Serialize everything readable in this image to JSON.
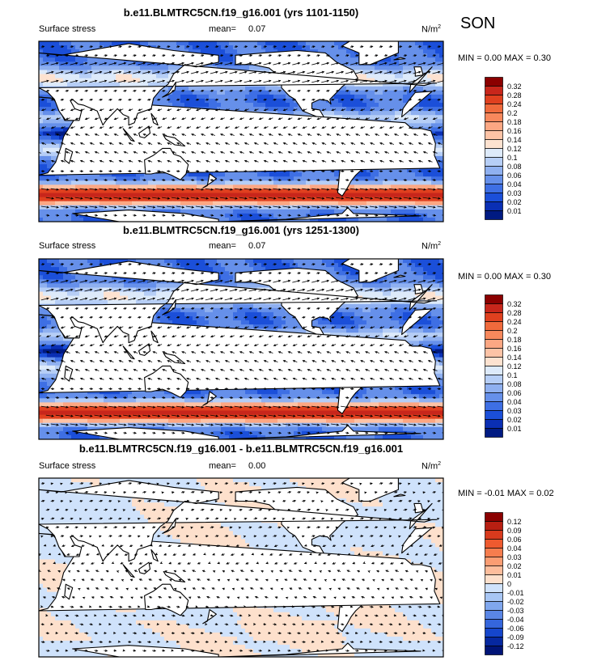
{
  "season": "SON",
  "chart_data": [
    {
      "type": "heatmap",
      "title": "b.e11.BLMTRC5CN.f19_g16.001 (yrs 1101-1150)",
      "left_label": "Surface stress",
      "mean_label": "mean=",
      "mean_value": "0.07",
      "units": "N/m",
      "units_sup": "2",
      "stats": "MIN =  0.00 MAX =  0.30",
      "min": 0.0,
      "max": 0.3,
      "colorbar_levels": [
        "0.32",
        "0.28",
        "0.24",
        "0.2",
        "0.18",
        "0.16",
        "0.14",
        "0.12",
        "0.1",
        "0.08",
        "0.06",
        "0.04",
        "0.03",
        "0.02",
        "0.01"
      ],
      "colorbar_colors": [
        "#8b0000",
        "#c8261b",
        "#e0401f",
        "#f06a3c",
        "#f8885c",
        "#fca783",
        "#fdc3a6",
        "#fde2d0",
        "#ddeafa",
        "#b6cef6",
        "#8fb0f0",
        "#6690ea",
        "#3e6fe4",
        "#1b4fd9",
        "#0a2fb4",
        "#001a82"
      ],
      "field": "mean surface wind stress magnitude with vectors"
    },
    {
      "type": "heatmap",
      "title": "b.e11.BLMTRC5CN.f19_g16.001 (yrs 1251-1300)",
      "left_label": "Surface stress",
      "mean_label": "mean=",
      "mean_value": "0.07",
      "units": "N/m",
      "units_sup": "2",
      "stats": "MIN =  0.00 MAX =  0.30",
      "min": 0.0,
      "max": 0.3,
      "colorbar_levels": [
        "0.32",
        "0.28",
        "0.24",
        "0.2",
        "0.18",
        "0.16",
        "0.14",
        "0.12",
        "0.1",
        "0.08",
        "0.06",
        "0.04",
        "0.03",
        "0.02",
        "0.01"
      ],
      "colorbar_colors": [
        "#8b0000",
        "#c8261b",
        "#e0401f",
        "#f06a3c",
        "#f8885c",
        "#fca783",
        "#fdc3a6",
        "#fde2d0",
        "#ddeafa",
        "#b6cef6",
        "#8fb0f0",
        "#6690ea",
        "#3e6fe4",
        "#1b4fd9",
        "#0a2fb4",
        "#001a82"
      ],
      "field": "mean surface wind stress magnitude with vectors"
    },
    {
      "type": "heatmap",
      "title": "b.e11.BLMTRC5CN.f19_g16.001 - b.e11.BLMTRC5CN.f19_g16.001",
      "left_label": "Surface stress",
      "mean_label": "mean=",
      "mean_value": "0.00",
      "units": "N/m",
      "units_sup": "2",
      "stats": "MIN = -0.01 MAX =  0.02",
      "min": -0.01,
      "max": 0.02,
      "colorbar_levels": [
        "0.12",
        "0.09",
        "0.06",
        "0.04",
        "0.03",
        "0.02",
        "0.01",
        "0",
        "-0.01",
        "-0.02",
        "-0.03",
        "-0.04",
        "-0.06",
        "-0.09",
        "-0.12"
      ],
      "colorbar_colors": [
        "#8b0000",
        "#b81f12",
        "#d83a1d",
        "#ee5a2f",
        "#f67d4e",
        "#fb9d73",
        "#fdbd9c",
        "#fde0cc",
        "#cfe2fb",
        "#a8c6f4",
        "#80a7ee",
        "#5a86e6",
        "#3566dc",
        "#1546cc",
        "#0628a0",
        "#001477"
      ],
      "field": "difference in surface wind stress"
    }
  ]
}
